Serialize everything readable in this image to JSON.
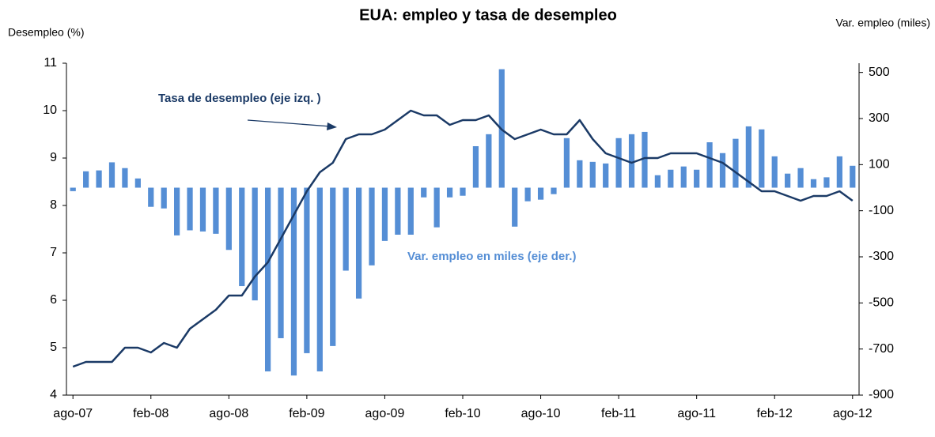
{
  "chart_data": {
    "type": "bar-line",
    "title": "EUA: empleo y tasa de desempleo",
    "y_label": "Desempleo (%)",
    "y2_label": "Var. empleo (miles)",
    "categories": [
      "ago-07",
      null,
      null,
      null,
      null,
      null,
      "feb-08",
      null,
      null,
      null,
      null,
      null,
      "ago-08",
      null,
      null,
      null,
      null,
      null,
      "feb-09",
      null,
      null,
      null,
      null,
      null,
      "ago-09",
      null,
      null,
      null,
      null,
      null,
      "feb-10",
      null,
      null,
      null,
      null,
      null,
      "ago-10",
      null,
      null,
      null,
      null,
      null,
      "feb-11",
      null,
      null,
      null,
      null,
      null,
      "ago-11",
      null,
      null,
      null,
      null,
      null,
      "feb-12",
      null,
      null,
      null,
      null,
      null,
      "ago-12"
    ],
    "series": [
      {
        "name": "Var. empleo en miles (eje der.)",
        "kind": "bar",
        "axis": "y2",
        "color": "#558ed5",
        "values": [
          -15,
          71,
          75,
          110,
          85,
          40,
          -83,
          -90,
          -207,
          -185,
          -190,
          -200,
          -270,
          -427,
          -489,
          -797,
          -653,
          -815,
          -718,
          -797,
          -687,
          -360,
          -481,
          -337,
          -231,
          -204,
          -204,
          -42,
          -172,
          -42,
          -35,
          180,
          232,
          514,
          -169,
          -59,
          -52,
          -28,
          215,
          119,
          112,
          105,
          215,
          232,
          242,
          54,
          78,
          92,
          78,
          197,
          150,
          212,
          266,
          253,
          136,
          61,
          85,
          37,
          45,
          136,
          95
        ]
      },
      {
        "name": "Tasa de desempleo (eje izq. )",
        "kind": "line",
        "axis": "y",
        "color": "#1b3a66",
        "values": [
          4.6,
          4.7,
          4.7,
          4.7,
          5.0,
          5.0,
          4.9,
          5.1,
          5.0,
          5.4,
          5.6,
          5.8,
          6.1,
          6.1,
          6.5,
          6.8,
          7.3,
          7.8,
          8.3,
          8.7,
          8.9,
          9.4,
          9.5,
          9.5,
          9.6,
          9.8,
          10.0,
          9.9,
          9.9,
          9.7,
          9.8,
          9.8,
          9.9,
          9.6,
          9.4,
          9.5,
          9.6,
          9.5,
          9.5,
          9.8,
          9.4,
          9.1,
          9.0,
          8.9,
          9.0,
          9.0,
          9.1,
          9.1,
          9.1,
          9.0,
          8.9,
          8.7,
          8.5,
          8.3,
          8.3,
          8.2,
          8.1,
          8.2,
          8.2,
          8.3,
          8.1
        ]
      }
    ],
    "ylim": [
      4,
      11
    ],
    "yticks": [
      4,
      5,
      6,
      7,
      8,
      9,
      10,
      11
    ],
    "y2lim": [
      -900,
      540
    ],
    "y2ticks": [
      -900,
      -700,
      -500,
      -300,
      -100,
      100,
      300,
      500
    ]
  }
}
